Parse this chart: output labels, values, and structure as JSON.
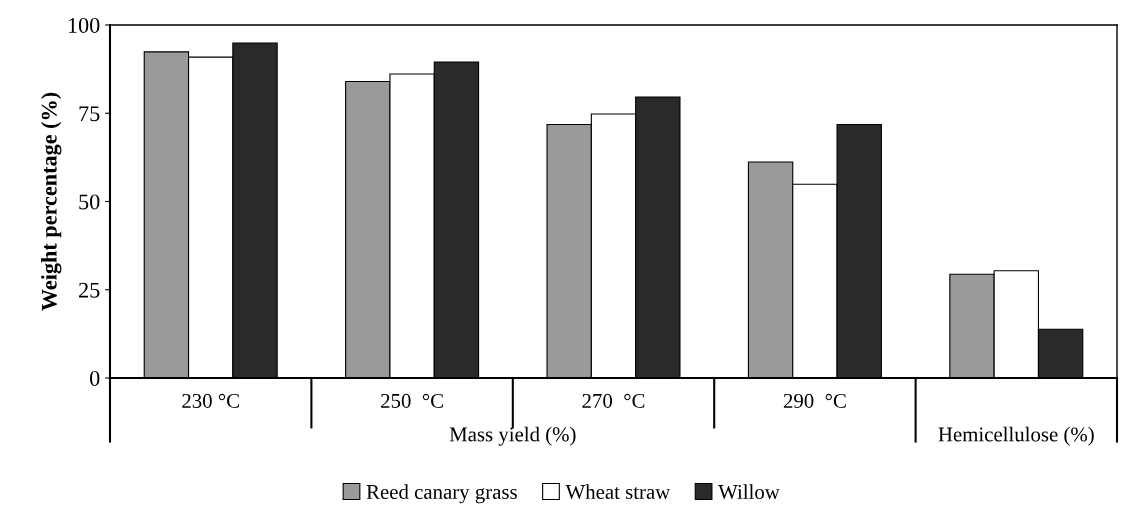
{
  "chart_data": {
    "type": "bar",
    "ylabel": "Weight percentage (%)",
    "categories": [
      "230 °C",
      "250  °C",
      "270  °C",
      "290  °C",
      null
    ],
    "series": [
      {
        "name": "Reed canary grass",
        "color": "#9a9a9a",
        "values": [
          92.4,
          84.0,
          71.8,
          61.2,
          29.4
        ]
      },
      {
        "name": "Wheat straw",
        "color": "#ffffff",
        "values": [
          90.9,
          86.1,
          74.8,
          54.9,
          30.4
        ]
      },
      {
        "name": "Willow",
        "color": "#2a2a2a",
        "values": [
          94.9,
          89.5,
          79.6,
          71.8,
          13.8
        ]
      }
    ],
    "annotations": [
      "Mass yield (%)",
      "Hemicellulose (%)"
    ],
    "ylim": [
      0,
      100
    ],
    "yticks": [
      0,
      25,
      50,
      75,
      100
    ],
    "grid": false,
    "legend": "bottom"
  }
}
